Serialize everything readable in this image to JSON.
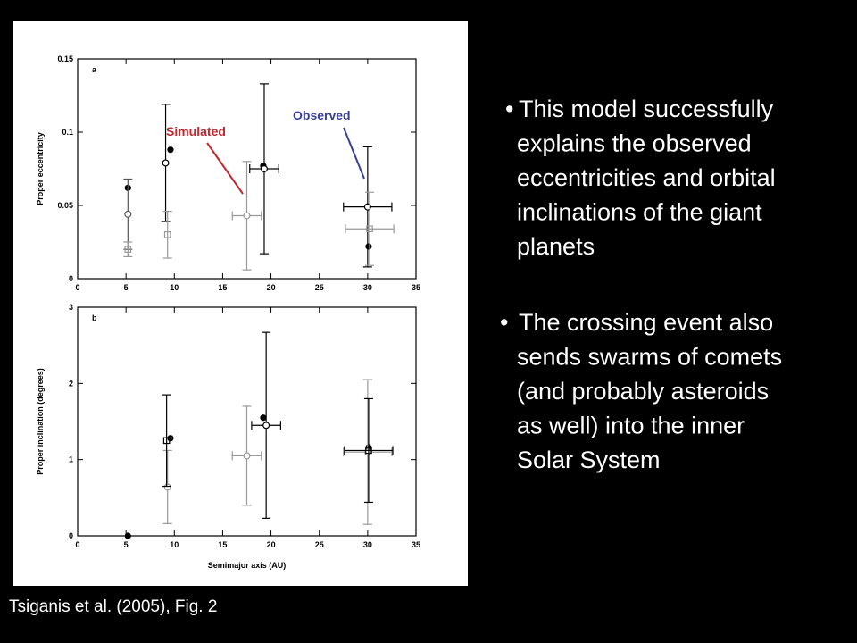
{
  "chart_data": [
    {
      "type": "scatter",
      "panel_label": "a",
      "ylabel": "Proper eccentricity",
      "xlim": [
        0,
        35
      ],
      "xticks": [
        0,
        5,
        10,
        15,
        20,
        25,
        30,
        35
      ],
      "ylim": [
        0,
        0.15
      ],
      "yticks": [
        0,
        0.05,
        0.1,
        0.15
      ],
      "annotations": [
        {
          "text": "Simulated",
          "color": "#c0282d"
        },
        {
          "text": "Observed",
          "color": "#3a3f9a"
        }
      ],
      "series": [
        {
          "name": "Observed",
          "marker": "filled",
          "color": "#000000",
          "x": [
            5.2,
            9.6,
            19.2,
            30.1
          ],
          "values": [
            0.062,
            0.088,
            0.077,
            0.022
          ]
        },
        {
          "name": "Simulated",
          "marker": "circle",
          "color": "#000000",
          "colors": [
            "#555555",
            "#000000",
            "#999999",
            "#000000",
            "#000000"
          ],
          "x": [
            5.2,
            9.1,
            17.5,
            19.3,
            30
          ],
          "values": [
            0.044,
            0.079,
            0.043,
            0.075,
            0.049
          ],
          "yerr": [
            0.024,
            0.04,
            0.037,
            0.058,
            0.041
          ],
          "xerr": [
            null,
            null,
            1.5,
            1.5,
            2.5
          ]
        },
        {
          "marker": "square",
          "color": "#999999",
          "x": [
            5.2,
            9.3,
            30.2
          ],
          "values": [
            0.02,
            0.03,
            0.034
          ],
          "yerr": [
            0.005,
            0.016,
            0.025
          ],
          "xerr": [
            null,
            null,
            2.5
          ]
        }
      ]
    },
    {
      "type": "scatter",
      "panel_label": "b",
      "ylabel": "Proper inclination (degrees)",
      "xlabel": "Semimajor axis (AU)",
      "xlim": [
        0,
        35
      ],
      "xticks": [
        0,
        5,
        10,
        15,
        20,
        25,
        30,
        35
      ],
      "ylim": [
        0,
        3
      ],
      "yticks": [
        0,
        1,
        2,
        3
      ],
      "series": [
        {
          "name": "Observed",
          "marker": "filled",
          "color": "#000000",
          "x": [
            5.2,
            9.6,
            19.2,
            30.1
          ],
          "values": [
            0.0,
            1.28,
            1.55,
            1.16
          ]
        },
        {
          "name": "Simulated",
          "marker": "circle",
          "color": "#000000",
          "colors": [
            "#999999",
            "#999999",
            "#000000",
            "#999999"
          ],
          "x": [
            9.3,
            17.5,
            19.5,
            30
          ],
          "values": [
            0.64,
            1.05,
            1.45,
            1.1
          ],
          "yerr": [
            0.48,
            0.65,
            1.22,
            0.95
          ],
          "xerr": [
            null,
            1.5,
            1.5,
            2.5
          ]
        },
        {
          "marker": "square",
          "color": "#000000",
          "x": [
            9.2,
            30.1
          ],
          "values": [
            1.25,
            1.12
          ],
          "yerr": [
            0.6,
            0.68
          ],
          "xerr": [
            null,
            2.5
          ]
        }
      ]
    }
  ],
  "bullets": [
    [
      "This model successfully",
      "explains the observed",
      "eccentricities and orbital",
      "inclinations of the giant",
      "planets"
    ],
    [
      "The crossing event also",
      "sends swarms of comets",
      "(and probably asteroids",
      "as well) into the inner",
      "Solar System"
    ]
  ],
  "caption": "Tsiganis et al. (2005), Fig. 2"
}
